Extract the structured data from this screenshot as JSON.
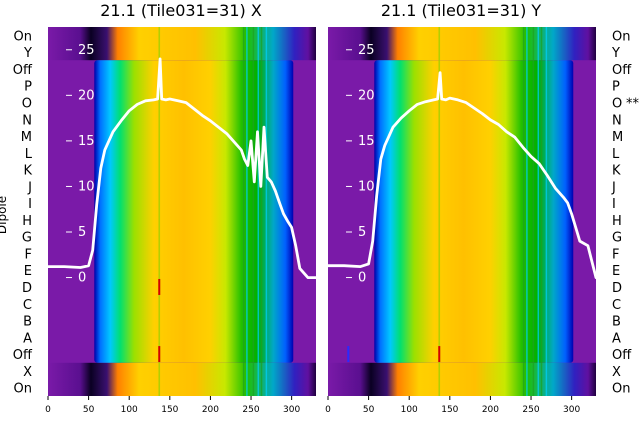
{
  "ylabel": "Dipole",
  "colors": {
    "band_top": "#7a1aa8",
    "band_bottom": "#1a0033",
    "curve": "#ffffff",
    "spike_red": "#d10000",
    "spike_blue": "#2a2aff"
  },
  "chart_data": [
    {
      "type": "heatmap",
      "title": "21.1 (Tile031=31) X",
      "x_ticks": [
        0,
        50,
        100,
        150,
        200,
        250,
        300
      ],
      "xlim": [
        0,
        330
      ],
      "row_labels": [
        "On",
        "Y",
        "Off",
        "P",
        "O",
        "N",
        "M",
        "L",
        "K",
        "J",
        "I",
        "H",
        "G",
        "F",
        "E",
        "D",
        "C",
        "B",
        "A",
        "Off",
        "X",
        "On"
      ],
      "overlay_ticks": [
        25,
        20,
        15,
        10,
        5,
        0
      ],
      "overlay_ylim": [
        -13.0,
        27.5
      ],
      "curve": {
        "x": [
          0,
          20,
          40,
          50,
          55,
          60,
          65,
          70,
          75,
          80,
          90,
          100,
          110,
          120,
          130,
          135,
          138,
          140,
          145,
          150,
          160,
          170,
          180,
          190,
          200,
          210,
          220,
          230,
          238,
          242,
          246,
          250,
          254,
          258,
          262,
          266,
          270,
          275,
          280,
          285,
          290,
          295,
          300,
          305,
          310,
          320,
          330
        ],
        "y": [
          1.2,
          1.2,
          1.1,
          1.3,
          3.0,
          8.0,
          12.0,
          14.0,
          15.0,
          16.0,
          17.2,
          18.3,
          19.0,
          19.4,
          19.5,
          19.6,
          24.0,
          19.6,
          19.5,
          19.6,
          19.4,
          19.2,
          18.5,
          17.8,
          17.2,
          16.5,
          15.8,
          14.8,
          14.0,
          13.0,
          12.3,
          15.0,
          10.5,
          16.0,
          10.0,
          16.5,
          11.0,
          10.5,
          9.5,
          8.2,
          7.0,
          6.2,
          5.5,
          3.5,
          1.0,
          0.0,
          0.0
        ]
      },
      "spikes": [
        {
          "x": 137,
          "row": "D",
          "color": "red"
        },
        {
          "x": 137,
          "row": "Off",
          "color": "red"
        }
      ],
      "annotation": ""
    },
    {
      "type": "heatmap",
      "title": "21.1 (Tile031=31) Y",
      "x_ticks": [
        0,
        50,
        100,
        150,
        200,
        250,
        300
      ],
      "xlim": [
        0,
        330
      ],
      "row_labels": [
        "On",
        "Y",
        "Off",
        "P",
        "O",
        "N",
        "M",
        "L",
        "K",
        "J",
        "I",
        "H",
        "G",
        "F",
        "E",
        "D",
        "C",
        "B",
        "A",
        "Off",
        "X",
        "On"
      ],
      "overlay_ticks": [
        25,
        20,
        15,
        10,
        5,
        0
      ],
      "overlay_ylim": [
        -13.0,
        27.5
      ],
      "curve": {
        "x": [
          0,
          20,
          40,
          50,
          55,
          60,
          65,
          70,
          75,
          80,
          90,
          100,
          110,
          120,
          130,
          135,
          138,
          140,
          145,
          150,
          160,
          170,
          180,
          190,
          200,
          210,
          220,
          230,
          240,
          250,
          260,
          270,
          280,
          290,
          295,
          300,
          305,
          310,
          320,
          330
        ],
        "y": [
          1.3,
          1.3,
          1.2,
          1.5,
          4.0,
          9.0,
          13.0,
          14.5,
          15.5,
          16.5,
          17.5,
          18.3,
          19.0,
          19.3,
          19.5,
          19.6,
          22.5,
          19.6,
          19.5,
          19.7,
          19.5,
          19.2,
          18.6,
          18.0,
          17.3,
          16.8,
          16.0,
          15.4,
          14.3,
          13.3,
          12.5,
          11.2,
          9.8,
          8.8,
          8.2,
          7.0,
          5.5,
          4.0,
          3.5,
          0.0
        ]
      },
      "spikes": [
        {
          "x": 25,
          "row": "Off",
          "color": "blue"
        },
        {
          "x": 137,
          "row": "Off",
          "color": "red"
        }
      ],
      "annotation": "**"
    }
  ]
}
